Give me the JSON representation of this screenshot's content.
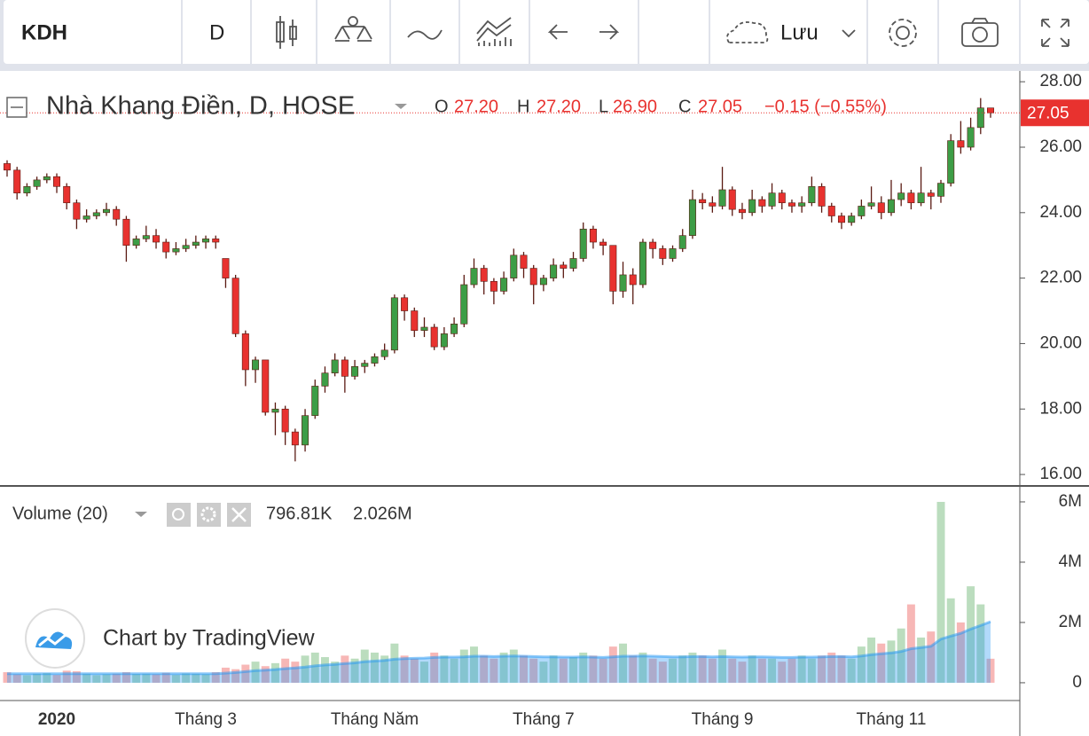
{
  "toolbar": {
    "symbol": "KDH",
    "interval": "D",
    "save": "Lưu"
  },
  "watermark": "Chart by TradingView",
  "chart_data": [
    {
      "type": "candlestick",
      "title": "Nhà Khang Điền, D, HOSE",
      "ohlc_legend": {
        "labels": [
          "O",
          "H",
          "L",
          "C"
        ],
        "values": [
          "27.20",
          "27.20",
          "26.90",
          "27.05"
        ],
        "change": "−0.15 (−0.55%)"
      },
      "last_price_label": "27.05",
      "up_color": "#3d9d46",
      "down_color": "#e8322f",
      "categories": [
        null,
        null,
        null,
        null,
        null,
        "2020",
        null,
        null,
        null,
        null,
        null,
        null,
        null,
        null,
        null,
        null,
        null,
        null,
        null,
        null,
        "Tháng 3",
        null,
        null,
        null,
        null,
        null,
        null,
        null,
        null,
        null,
        null,
        null,
        null,
        null,
        null,
        null,
        null,
        "Tháng Năm",
        null,
        null,
        null,
        null,
        null,
        null,
        null,
        null,
        null,
        null,
        null,
        null,
        null,
        null,
        null,
        null,
        "Tháng 7",
        null,
        null,
        null,
        null,
        null,
        null,
        null,
        null,
        null,
        null,
        null,
        null,
        null,
        null,
        null,
        null,
        null,
        "Tháng 9",
        null,
        null,
        null,
        null,
        null,
        null,
        null,
        null,
        null,
        null,
        null,
        null,
        null,
        null,
        null,
        null,
        "Tháng 11",
        null,
        null,
        null,
        null,
        null,
        null,
        null,
        null,
        null,
        null
      ],
      "open": [
        25.5,
        25.3,
        24.6,
        24.8,
        25.0,
        25.1,
        24.8,
        24.3,
        23.8,
        23.9,
        24.0,
        24.1,
        23.8,
        23.0,
        23.2,
        23.3,
        23.1,
        22.8,
        22.9,
        23.0,
        23.1,
        23.2,
        22.6,
        22.0,
        20.3,
        19.2,
        19.5,
        17.9,
        18.0,
        17.3,
        16.9,
        17.8,
        18.7,
        19.1,
        19.5,
        19.0,
        19.3,
        19.4,
        19.6,
        19.8,
        21.4,
        21.0,
        20.4,
        20.5,
        19.9,
        20.3,
        20.6,
        21.8,
        22.3,
        21.9,
        21.6,
        22.0,
        22.7,
        22.3,
        21.8,
        22.0,
        22.4,
        22.3,
        22.6,
        23.5,
        23.1,
        23.0,
        21.6,
        22.1,
        21.8,
        23.1,
        22.9,
        22.6,
        22.9,
        23.3,
        24.4,
        24.3,
        24.2,
        24.7,
        24.1,
        24.0,
        24.4,
        24.2,
        24.6,
        24.3,
        24.2,
        24.3,
        24.8,
        24.2,
        23.9,
        23.7,
        23.9,
        24.2,
        24.3,
        24.0,
        24.4,
        24.6,
        24.3,
        24.6,
        24.5,
        24.9,
        26.2,
        26.0,
        26.6,
        27.2
      ],
      "high": [
        25.6,
        25.4,
        24.9,
        25.1,
        25.2,
        25.2,
        24.9,
        24.4,
        24.1,
        24.1,
        24.3,
        24.2,
        23.9,
        23.3,
        23.6,
        23.5,
        23.2,
        23.1,
        23.2,
        23.3,
        23.3,
        23.3,
        22.6,
        22.1,
        20.4,
        19.6,
        19.5,
        18.2,
        18.1,
        17.4,
        18.0,
        18.9,
        19.3,
        19.7,
        19.6,
        19.5,
        19.5,
        19.7,
        20.0,
        21.5,
        21.5,
        21.1,
        20.8,
        20.6,
        20.5,
        20.8,
        22.1,
        22.6,
        22.4,
        22.0,
        22.2,
        22.9,
        22.8,
        22.4,
        22.1,
        22.6,
        22.5,
        22.8,
        23.7,
        23.6,
        23.2,
        23.0,
        22.5,
        22.3,
        23.2,
        23.2,
        23.0,
        23.0,
        23.5,
        24.7,
        24.6,
        24.5,
        25.4,
        24.8,
        24.3,
        24.7,
        24.5,
        24.9,
        24.7,
        24.4,
        24.5,
        25.1,
        24.9,
        24.3,
        24.0,
        24.0,
        24.4,
        24.8,
        24.5,
        25.0,
        24.9,
        24.7,
        25.4,
        24.7,
        25.0,
        26.4,
        26.8,
        26.9,
        27.5,
        27.2
      ],
      "low": [
        25.1,
        24.4,
        24.5,
        24.7,
        24.9,
        24.6,
        24.1,
        23.5,
        23.7,
        23.8,
        23.9,
        23.6,
        22.5,
        22.9,
        23.1,
        22.9,
        22.6,
        22.7,
        22.8,
        22.9,
        22.9,
        22.9,
        21.7,
        20.2,
        18.7,
        18.8,
        17.8,
        17.2,
        16.9,
        16.4,
        16.7,
        17.7,
        18.5,
        19.0,
        18.5,
        18.9,
        19.1,
        19.3,
        19.5,
        19.7,
        20.7,
        20.2,
        20.2,
        19.8,
        19.8,
        20.2,
        20.5,
        21.7,
        21.5,
        21.2,
        21.5,
        21.9,
        22.0,
        21.2,
        21.6,
        21.9,
        22.0,
        22.2,
        22.5,
        22.9,
        22.7,
        21.2,
        21.4,
        21.2,
        21.7,
        22.6,
        22.4,
        22.5,
        22.8,
        23.2,
        24.1,
        24.0,
        24.1,
        23.9,
        23.8,
        23.9,
        24.0,
        24.1,
        24.1,
        24.0,
        24.0,
        24.2,
        24.0,
        23.7,
        23.5,
        23.6,
        23.8,
        24.1,
        23.8,
        23.9,
        24.2,
        24.1,
        24.2,
        24.1,
        24.3,
        24.8,
        25.8,
        25.9,
        26.4,
        26.9
      ],
      "close": [
        25.3,
        24.6,
        24.8,
        25.0,
        25.1,
        24.8,
        24.3,
        23.8,
        23.9,
        24.0,
        24.1,
        23.8,
        23.0,
        23.2,
        23.3,
        23.1,
        22.8,
        22.9,
        23.0,
        23.1,
        23.2,
        23.1,
        22.0,
        20.3,
        19.2,
        19.5,
        17.9,
        18.0,
        17.3,
        16.9,
        17.8,
        18.7,
        19.1,
        19.5,
        19.0,
        19.3,
        19.4,
        19.6,
        19.8,
        21.4,
        21.0,
        20.4,
        20.5,
        19.9,
        20.3,
        20.6,
        21.8,
        22.3,
        21.9,
        21.6,
        22.0,
        22.7,
        22.3,
        21.8,
        22.0,
        22.4,
        22.3,
        22.6,
        23.5,
        23.1,
        23.0,
        21.6,
        22.1,
        21.8,
        23.1,
        22.9,
        22.6,
        22.9,
        23.3,
        24.4,
        24.3,
        24.2,
        24.7,
        24.1,
        24.0,
        24.4,
        24.2,
        24.6,
        24.3,
        24.2,
        24.3,
        24.8,
        24.2,
        23.9,
        23.7,
        23.9,
        24.2,
        24.3,
        24.0,
        24.4,
        24.6,
        24.3,
        24.6,
        24.5,
        24.9,
        26.2,
        26.0,
        26.6,
        27.2,
        27.05
      ],
      "ylim": [
        15.65,
        28.33
      ],
      "yticks": [
        {
          "value": 16,
          "label": "16.00"
        },
        {
          "value": 18,
          "label": "18.00"
        },
        {
          "value": 20,
          "label": "20.00"
        },
        {
          "value": 22,
          "label": "22.00"
        },
        {
          "value": 24,
          "label": "24.00"
        },
        {
          "value": 26,
          "label": "26.00"
        },
        {
          "value": 28,
          "label": "28.00"
        }
      ]
    },
    {
      "type": "volume",
      "title": "Volume (20)",
      "ma_color": "#2196f3",
      "values": [
        350000,
        280000,
        250000,
        300000,
        320000,
        260000,
        400000,
        380000,
        300000,
        250000,
        280000,
        300000,
        350000,
        290000,
        300000,
        280000,
        330000,
        260000,
        310000,
        300000,
        280000,
        350000,
        500000,
        450000,
        600000,
        700000,
        550000,
        650000,
        800000,
        700000,
        900000,
        1000000,
        850000,
        700000,
        900000,
        800000,
        1100000,
        1000000,
        900000,
        1300000,
        900000,
        800000,
        700000,
        1000000,
        900000,
        800000,
        1100000,
        1200000,
        900000,
        800000,
        1000000,
        1100000,
        900000,
        800000,
        700000,
        900000,
        800000,
        850000,
        1000000,
        900000,
        800000,
        1200000,
        1300000,
        900000,
        1000000,
        800000,
        700000,
        800000,
        900000,
        1000000,
        900000,
        800000,
        1100000,
        800000,
        700000,
        900000,
        800000,
        800000,
        700000,
        800000,
        900000,
        800000,
        900000,
        1000000,
        900000,
        800000,
        1200000,
        1500000,
        1300000,
        1400000,
        1800000,
        2600000,
        1500000,
        1700000,
        6000000,
        2800000,
        2000000,
        3200000,
        2600000,
        796810
      ],
      "last_label": "796.81K",
      "ma_values": [
        300000,
        300000,
        300000,
        300000,
        300000,
        300000,
        300000,
        300000,
        300000,
        300000,
        300000,
        300000,
        300000,
        300000,
        300000,
        300000,
        300000,
        300000,
        300000,
        300000,
        300000,
        300000,
        320000,
        340000,
        370000,
        400000,
        420000,
        440000,
        470000,
        490000,
        520000,
        560000,
        590000,
        610000,
        640000,
        660000,
        700000,
        720000,
        740000,
        780000,
        800000,
        810000,
        820000,
        840000,
        850000,
        850000,
        860000,
        880000,
        880000,
        870000,
        880000,
        890000,
        880000,
        870000,
        860000,
        860000,
        850000,
        850000,
        860000,
        850000,
        840000,
        860000,
        880000,
        880000,
        890000,
        880000,
        870000,
        860000,
        860000,
        870000,
        870000,
        860000,
        870000,
        860000,
        850000,
        860000,
        860000,
        850000,
        840000,
        840000,
        850000,
        850000,
        860000,
        870000,
        870000,
        860000,
        890000,
        930000,
        960000,
        990000,
        1040000,
        1130000,
        1170000,
        1210000,
        1450000,
        1550000,
        1640000,
        1780000,
        1900000,
        2026000
      ],
      "ma_last_label": "2.026M",
      "ylim": [
        -590000,
        6470000
      ],
      "yticks": [
        0,
        {
          "value": 2000000,
          "label": "2M"
        },
        {
          "value": 4000000,
          "label": "4M"
        },
        {
          "value": 6000000,
          "label": "6M"
        }
      ]
    }
  ]
}
